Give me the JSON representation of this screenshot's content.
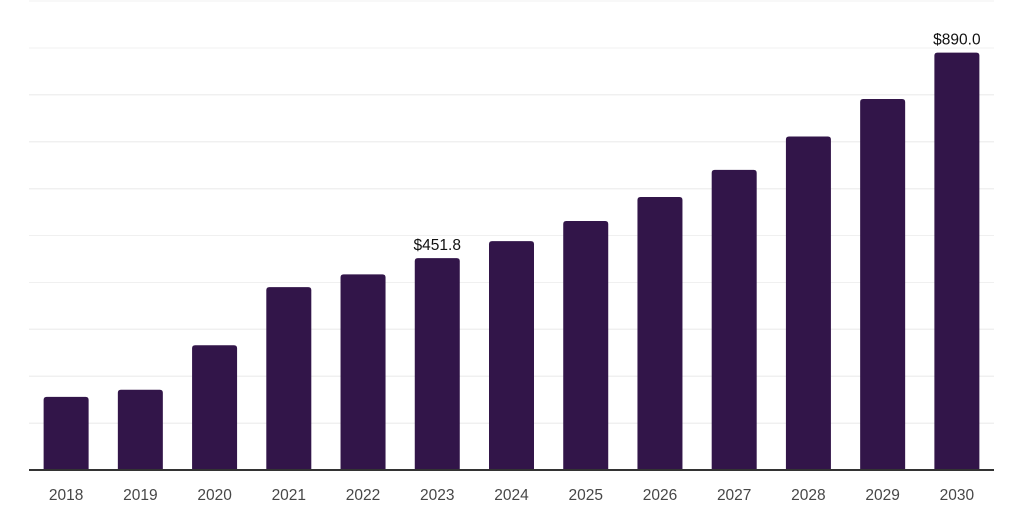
{
  "page": {
    "background_color": "#ffffff"
  },
  "chart_data": {
    "type": "bar",
    "title": "",
    "xlabel": "",
    "ylabel": "",
    "categories": [
      "2018",
      "2019",
      "2020",
      "2021",
      "2022",
      "2023",
      "2024",
      "2025",
      "2026",
      "2027",
      "2028",
      "2029",
      "2030"
    ],
    "values": [
      156,
      171,
      266,
      390,
      417,
      451.8,
      488,
      531,
      582,
      640,
      711,
      791,
      890
    ],
    "annotations": [
      {
        "category": "2023",
        "text": "$451.8"
      },
      {
        "category": "2030",
        "text": "$890.0"
      }
    ],
    "ylim": [
      0,
      1000
    ],
    "grid_step": 100,
    "grid": true,
    "y_tick_labels_visible": false,
    "legend_position": "none",
    "colors": {
      "bar": "#321549",
      "gridline": "#f0f0f0",
      "axis_line": "#333333",
      "tick_label": "#474747",
      "data_label": "#111111",
      "background": "#ffffff"
    }
  }
}
